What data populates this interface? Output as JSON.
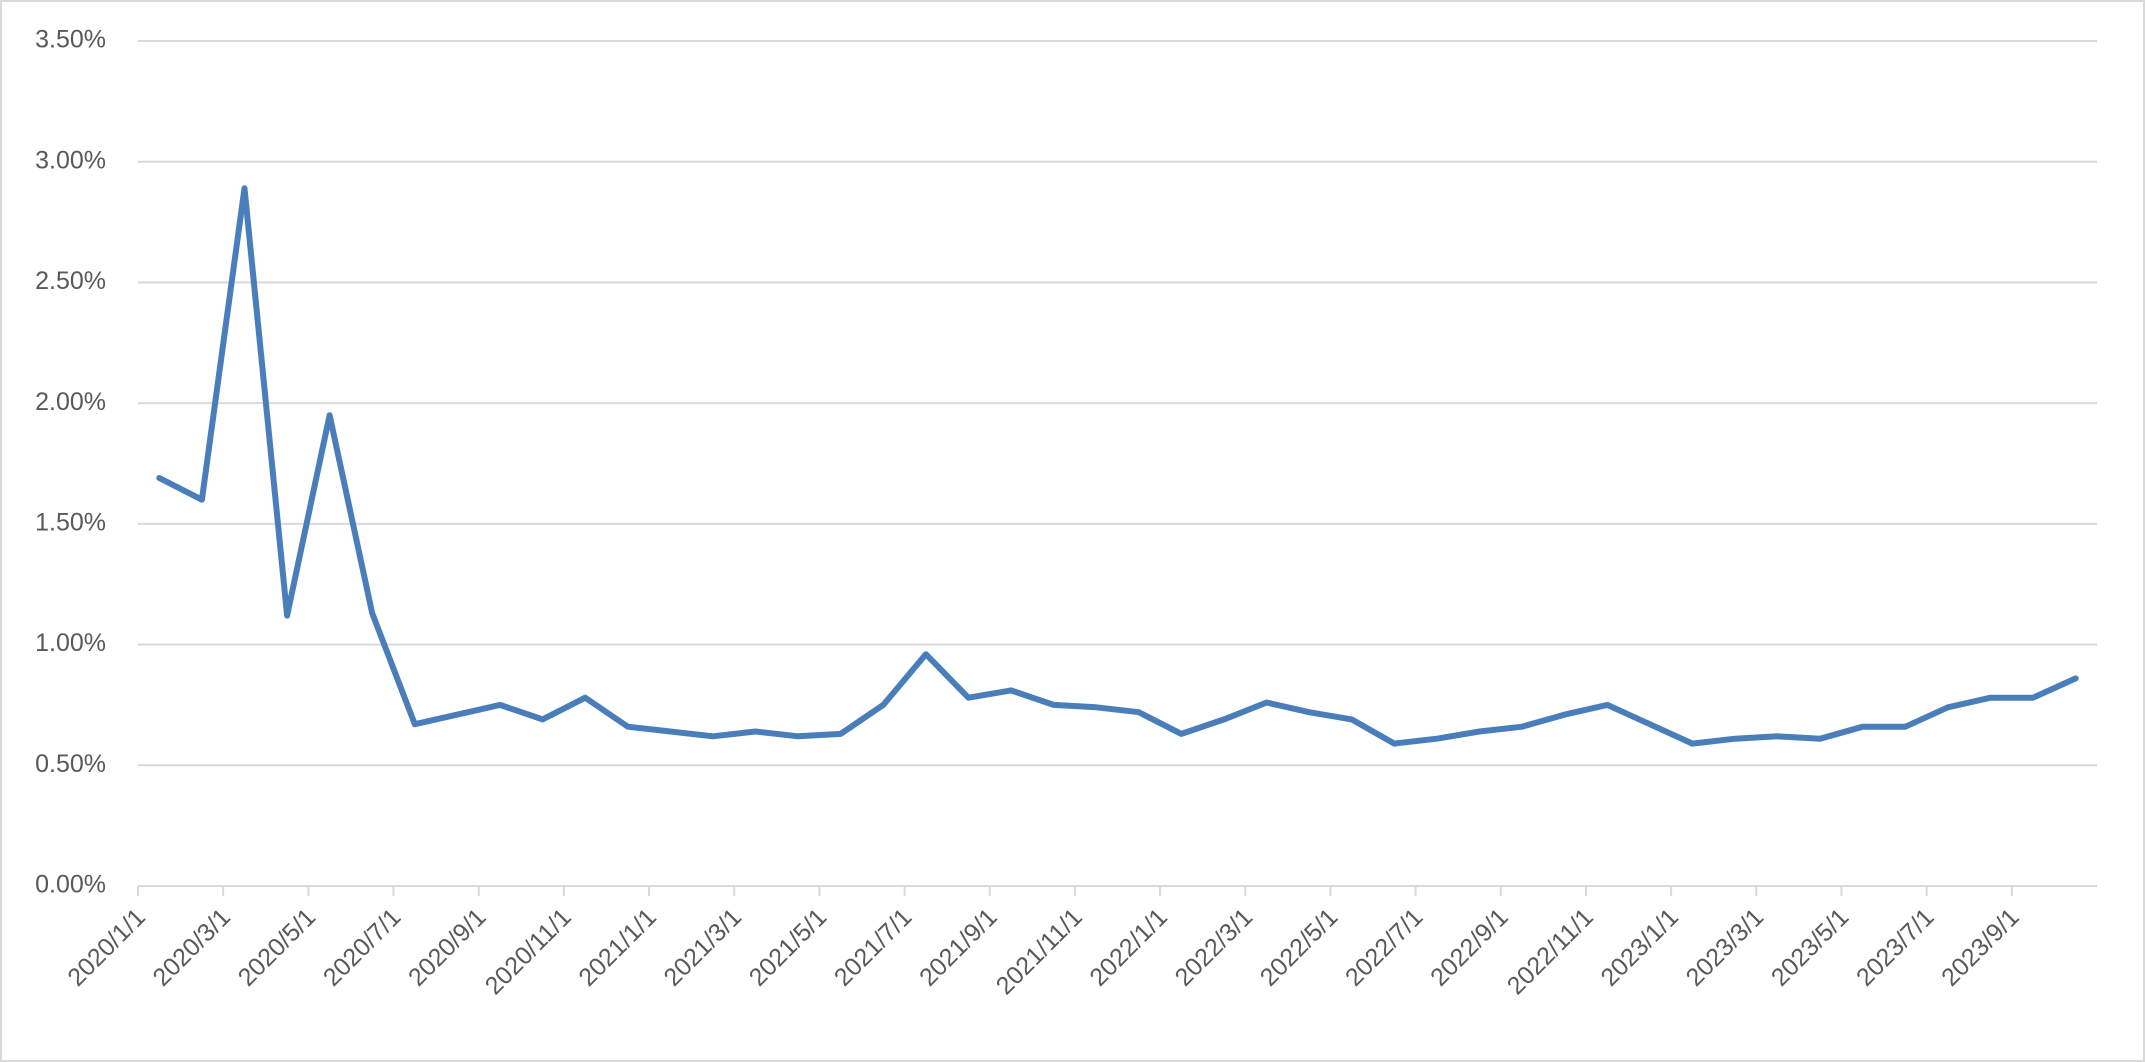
{
  "chart_data": {
    "type": "line",
    "categories": [
      "2020/1/1",
      null,
      "2020/3/1",
      null,
      "2020/5/1",
      null,
      "2020/7/1",
      null,
      "2020/9/1",
      null,
      "2020/11/1",
      null,
      "2021/1/1",
      null,
      "2021/3/1",
      null,
      "2021/5/1",
      null,
      "2021/7/1",
      null,
      "2021/9/1",
      null,
      "2021/11/1",
      null,
      "2022/1/1",
      null,
      "2022/3/1",
      null,
      "2022/5/1",
      null,
      "2022/7/1",
      null,
      "2022/9/1",
      null,
      "2022/11/1",
      null,
      "2023/1/1",
      null,
      "2023/3/1",
      null,
      "2023/5/1",
      null,
      "2023/7/1",
      null,
      "2023/9/1",
      null
    ],
    "values": [
      1.69,
      1.6,
      2.89,
      1.12,
      1.95,
      1.13,
      0.67,
      0.71,
      0.75,
      0.69,
      0.78,
      0.66,
      0.64,
      0.62,
      0.64,
      0.62,
      0.63,
      0.75,
      0.96,
      0.78,
      0.81,
      0.75,
      0.74,
      0.72,
      0.63,
      0.69,
      0.76,
      0.72,
      0.69,
      0.59,
      0.61,
      0.64,
      0.66,
      0.71,
      0.75,
      0.67,
      0.59,
      0.61,
      0.62,
      0.61,
      0.66,
      0.66,
      0.74,
      0.78,
      0.78,
      0.86
    ],
    "color": "#4a7ebb",
    "ylim": [
      0,
      3.5
    ],
    "yticks": [
      {
        "value": 0,
        "label": "0.00%"
      },
      {
        "value": 0.5,
        "label": "0.50%"
      },
      {
        "value": 1,
        "label": "1.00%"
      },
      {
        "value": 1.5,
        "label": "1.50%"
      },
      {
        "value": 2,
        "label": "2.00%"
      },
      {
        "value": 2.5,
        "label": "2.50%"
      },
      {
        "value": 3,
        "label": "3.00%"
      },
      {
        "value": 3.5,
        "label": "3.50%"
      }
    ],
    "grid": true
  }
}
